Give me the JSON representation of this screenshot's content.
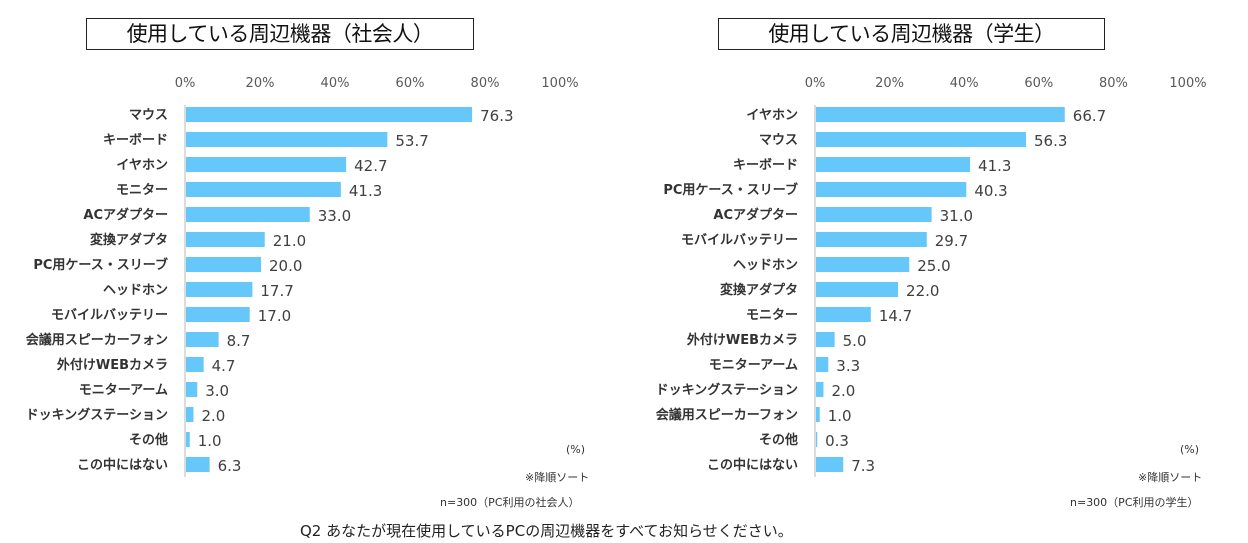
{
  "question": "Q2 あなたが現在使用しているPCの周辺機器をすべてお知らせください。",
  "chart_data": [
    {
      "type": "bar",
      "orientation": "horizontal",
      "title": "使用している周辺機器（社会人）",
      "xlabel": "",
      "ylabel": "",
      "xlim": [
        0,
        100
      ],
      "ticks": [
        "0%",
        "20%",
        "40%",
        "60%",
        "80%",
        "100%"
      ],
      "unit_label": "(%)",
      "sort_note": "※降順ソート",
      "sample_note": "n=300（PC利用の社会人）",
      "bar_color": "#66c8fa",
      "categories": [
        "マウス",
        "キーボード",
        "イヤホン",
        "モニター",
        "ACアダプター",
        "変換アダプタ",
        "PC用ケース・スリーブ",
        "ヘッドホン",
        "モバイルバッテリー",
        "会議用スピーカーフォン",
        "外付けWEBカメラ",
        "モニターアーム",
        "ドッキングステーション",
        "その他",
        "この中にはない"
      ],
      "values": [
        76.3,
        53.7,
        42.7,
        41.3,
        33.0,
        21.0,
        20.0,
        17.7,
        17.0,
        8.7,
        4.7,
        3.0,
        2.0,
        1.0,
        6.3
      ],
      "value_labels": [
        "76.3",
        "53.7",
        "42.7",
        "41.3",
        "33.0",
        "21.0",
        "20.0",
        "17.7",
        "17.0",
        "8.7",
        "4.7",
        "3.0",
        "2.0",
        "1.0",
        "6.3"
      ]
    },
    {
      "type": "bar",
      "orientation": "horizontal",
      "title": "使用している周辺機器（学生）",
      "xlabel": "",
      "ylabel": "",
      "xlim": [
        0,
        100
      ],
      "ticks": [
        "0%",
        "20%",
        "40%",
        "60%",
        "80%",
        "100%"
      ],
      "unit_label": "(%)",
      "sort_note": "※降順ソート",
      "sample_note": "n=300（PC利用の学生）",
      "bar_color": "#66c8fa",
      "categories": [
        "イヤホン",
        "マウス",
        "キーボード",
        "PC用ケース・スリーブ",
        "ACアダプター",
        "モバイルバッテリー",
        "ヘッドホン",
        "変換アダプタ",
        "モニター",
        "外付けWEBカメラ",
        "モニターアーム",
        "ドッキングステーション",
        "会議用スピーカーフォン",
        "その他",
        "この中にはない"
      ],
      "values": [
        66.7,
        56.3,
        41.3,
        40.3,
        31.0,
        29.7,
        25.0,
        22.0,
        14.7,
        5.0,
        3.3,
        2.0,
        1.0,
        0.3,
        7.3
      ],
      "value_labels": [
        "66.7",
        "56.3",
        "41.3",
        "40.3",
        "31.0",
        "29.7",
        "25.0",
        "22.0",
        "14.7",
        "5.0",
        "3.3",
        "2.0",
        "1.0",
        "0.3",
        "7.3"
      ]
    }
  ]
}
